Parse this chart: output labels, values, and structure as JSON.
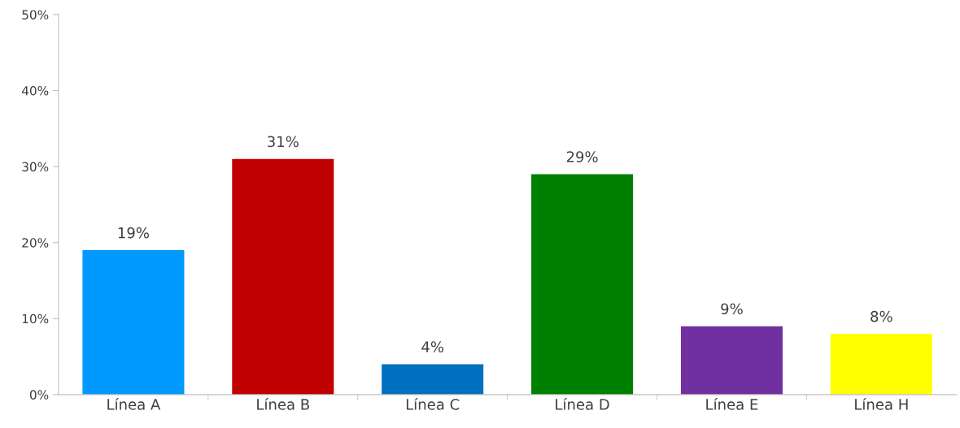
{
  "chart_data": {
    "type": "bar",
    "categories": [
      "Línea A",
      "Línea B",
      "Línea C",
      "Línea D",
      "Línea E",
      "Línea H"
    ],
    "values": [
      19,
      31,
      4,
      29,
      9,
      8
    ],
    "colors": [
      "#0099ff",
      "#c00000",
      "#0070c0",
      "#008000",
      "#7030a0",
      "#ffff00"
    ],
    "value_labels": [
      "19%",
      "31%",
      "4%",
      "29%",
      "9%",
      "8%"
    ],
    "ylim": [
      0,
      50
    ],
    "yticks": [
      {
        "value": 0,
        "label": "0%"
      },
      {
        "value": 10,
        "label": "10%"
      },
      {
        "value": 20,
        "label": "20%"
      },
      {
        "value": 30,
        "label": "30%"
      },
      {
        "value": 40,
        "label": "40%"
      },
      {
        "value": 50,
        "label": "50%"
      }
    ],
    "grid": false,
    "legend": false
  }
}
